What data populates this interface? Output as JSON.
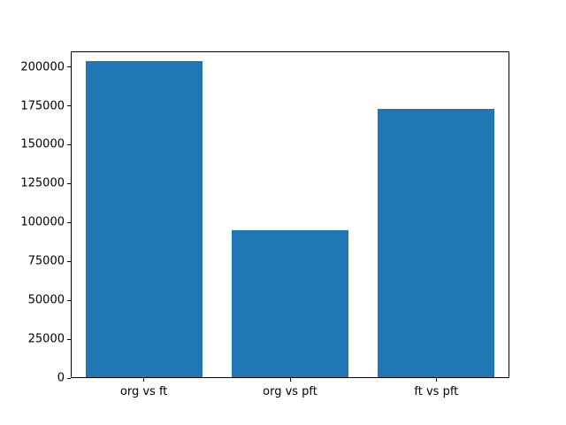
{
  "chart_data": {
    "type": "bar",
    "categories": [
      "org vs ft",
      "org vs pft",
      "ft vs pft"
    ],
    "values": [
      204000,
      95000,
      173000
    ],
    "title": "",
    "xlabel": "",
    "ylabel": "",
    "ylim": [
      0,
      210000
    ],
    "yticks": [
      0,
      25000,
      50000,
      75000,
      100000,
      125000,
      150000,
      175000,
      200000
    ],
    "bar_color": "#1f77b4",
    "background": "#ffffff",
    "grid": false,
    "legend": "none"
  }
}
